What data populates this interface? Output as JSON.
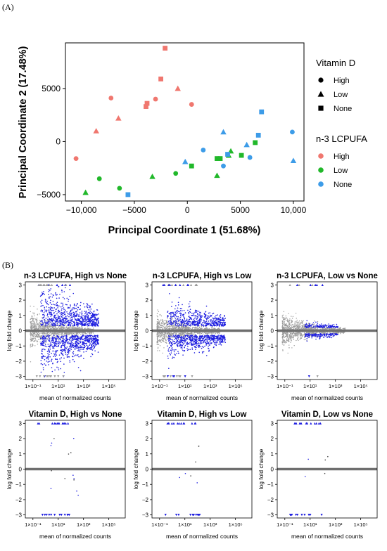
{
  "panel_a_label": "(A)",
  "panel_b_label": "(B)",
  "colors": {
    "high": "#F0776F",
    "low": "#21B82A",
    "none": "#3D9CE8",
    "ma_sig": "#1F1FE0",
    "ma_ns": "#9C9C9C",
    "ma_line": "#6E6E6E"
  },
  "chart_data": [
    {
      "type": "scatter",
      "xlabel": "Principal Coordinate 1 (51.68%)",
      "ylabel": "Principal Coordinate 2 (17.48%)",
      "xlim": [
        -11500,
        11000
      ],
      "ylim": [
        -5600,
        9300
      ],
      "xticks": [
        -10000,
        -5000,
        0,
        5000,
        10000
      ],
      "xtick_labels": [
        "−10,000",
        "−5000",
        "0",
        "5000",
        "10,000"
      ],
      "yticks": [
        -5000,
        0,
        5000
      ],
      "ytick_labels": [
        "−5000",
        "0",
        "5000"
      ],
      "grid": false,
      "legend_position": "right",
      "legend": {
        "shape_title": "Vitamin D",
        "shape_items": [
          {
            "label": "High",
            "shape": "circle"
          },
          {
            "label": "Low",
            "shape": "triangle"
          },
          {
            "label": "None",
            "shape": "square"
          }
        ],
        "color_title": "n-3 LCPUFA",
        "color_items": [
          {
            "label": "High",
            "key": "high"
          },
          {
            "label": "Low",
            "key": "low"
          },
          {
            "label": "None",
            "key": "none"
          }
        ]
      },
      "points": [
        {
          "x": -2100,
          "y": 8800,
          "color": "high",
          "shape": "square"
        },
        {
          "x": -2500,
          "y": 5900,
          "color": "high",
          "shape": "square"
        },
        {
          "x": -900,
          "y": 5000,
          "color": "high",
          "shape": "triangle"
        },
        {
          "x": -7200,
          "y": 4100,
          "color": "high",
          "shape": "circle"
        },
        {
          "x": -3000,
          "y": 4000,
          "color": "high",
          "shape": "circle"
        },
        {
          "x": -3800,
          "y": 3600,
          "color": "high",
          "shape": "square"
        },
        {
          "x": -3900,
          "y": 3300,
          "color": "high",
          "shape": "square"
        },
        {
          "x": 400,
          "y": 3500,
          "color": "high",
          "shape": "circle"
        },
        {
          "x": -6500,
          "y": 2200,
          "color": "high",
          "shape": "triangle"
        },
        {
          "x": -8600,
          "y": 1000,
          "color": "high",
          "shape": "triangle"
        },
        {
          "x": -10500,
          "y": -1600,
          "color": "high",
          "shape": "circle"
        },
        {
          "x": -9600,
          "y": -4800,
          "color": "low",
          "shape": "triangle"
        },
        {
          "x": -8300,
          "y": -3500,
          "color": "low",
          "shape": "circle"
        },
        {
          "x": -6400,
          "y": -4400,
          "color": "low",
          "shape": "circle"
        },
        {
          "x": -3300,
          "y": -3300,
          "color": "low",
          "shape": "triangle"
        },
        {
          "x": -1100,
          "y": -3000,
          "color": "low",
          "shape": "circle"
        },
        {
          "x": 400,
          "y": -2300,
          "color": "low",
          "shape": "square"
        },
        {
          "x": 2800,
          "y": -3200,
          "color": "low",
          "shape": "triangle"
        },
        {
          "x": 2800,
          "y": -1600,
          "color": "low",
          "shape": "square"
        },
        {
          "x": 3100,
          "y": -1600,
          "color": "low",
          "shape": "square"
        },
        {
          "x": 3900,
          "y": -1300,
          "color": "low",
          "shape": "triangle"
        },
        {
          "x": 4100,
          "y": -900,
          "color": "low",
          "shape": "triangle"
        },
        {
          "x": 5100,
          "y": -1300,
          "color": "low",
          "shape": "square"
        },
        {
          "x": 6400,
          "y": -100,
          "color": "low",
          "shape": "square"
        },
        {
          "x": -5600,
          "y": -5000,
          "color": "none",
          "shape": "square"
        },
        {
          "x": -200,
          "y": -1900,
          "color": "none",
          "shape": "triangle"
        },
        {
          "x": 1500,
          "y": -800,
          "color": "none",
          "shape": "circle"
        },
        {
          "x": 3400,
          "y": 900,
          "color": "none",
          "shape": "triangle"
        },
        {
          "x": 3400,
          "y": -2300,
          "color": "none",
          "shape": "circle"
        },
        {
          "x": 3800,
          "y": -1200,
          "color": "none",
          "shape": "square"
        },
        {
          "x": 5600,
          "y": -300,
          "color": "none",
          "shape": "triangle"
        },
        {
          "x": 5900,
          "y": -1500,
          "color": "none",
          "shape": "circle"
        },
        {
          "x": 6700,
          "y": 600,
          "color": "none",
          "shape": "square"
        },
        {
          "x": 7000,
          "y": 2800,
          "color": "none",
          "shape": "square"
        },
        {
          "x": 9900,
          "y": 900,
          "color": "none",
          "shape": "circle"
        },
        {
          "x": 10000,
          "y": -1800,
          "color": "none",
          "shape": "triangle"
        }
      ]
    },
    {
      "type": "scatter",
      "subtype": "ma-plot-grid",
      "xlabel": "mean of normalized counts",
      "ylabel": "log fold change",
      "ylim": [
        -3.2,
        3.2
      ],
      "yticks": [
        -3,
        -2,
        -1,
        0,
        1,
        2,
        3
      ],
      "xticks_log10": [
        -1,
        1,
        3,
        5
      ],
      "xtick_labels": [
        "1×10⁻¹",
        "1×10¹",
        "1×10³",
        "1×10⁵"
      ],
      "panels": [
        {
          "title": "n-3 LCPUFA, High vs None",
          "pattern": "wide"
        },
        {
          "title": "n-3 LCPUFA, High vs Low",
          "pattern": "medium"
        },
        {
          "title": "n-3 LCPUFA, Low vs None",
          "pattern": "narrow"
        },
        {
          "title": "Vitamin D, High vs None",
          "pattern": "sparse-a"
        },
        {
          "title": "Vitamin D, High vs Low",
          "pattern": "sparse-b"
        },
        {
          "title": "Vitamin D, Low vs None",
          "pattern": "sparse-c"
        }
      ]
    }
  ]
}
